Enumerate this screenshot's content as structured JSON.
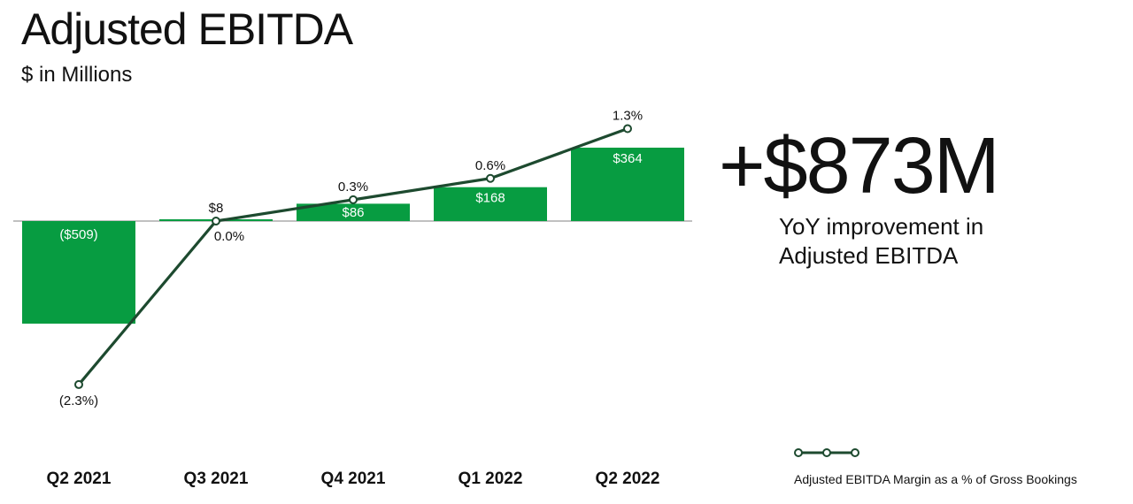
{
  "header": {
    "title": "Adjusted EBITDA",
    "subtitle": "$ in Millions"
  },
  "highlight": {
    "value": "+$873M",
    "caption": "YoY improvement in Adjusted EBITDA"
  },
  "legend": {
    "label": "Adjusted EBITDA Margin as a % of Gross Bookings"
  },
  "colors": {
    "bar": "#079c41",
    "line": "#1d4a2f",
    "axis": "#9a9a9a"
  },
  "chart_data": {
    "type": "bar",
    "categories": [
      "Q2 2021",
      "Q3 2021",
      "Q4 2021",
      "Q1 2022",
      "Q2 2022"
    ],
    "series": [
      {
        "values": [
          -509,
          8,
          86,
          168,
          364
        ],
        "labels": [
          "($509)",
          "$8",
          "$86",
          "$168",
          "$364"
        ]
      },
      {
        "name": "Adjusted EBITDA Margin as a % of Gross Bookings",
        "type": "line",
        "values": [
          -2.3,
          0.0,
          0.3,
          0.6,
          1.3
        ],
        "labels": [
          "(2.3%)",
          "0.0%",
          "0.3%",
          "0.6%",
          "1.3%"
        ]
      }
    ]
  }
}
